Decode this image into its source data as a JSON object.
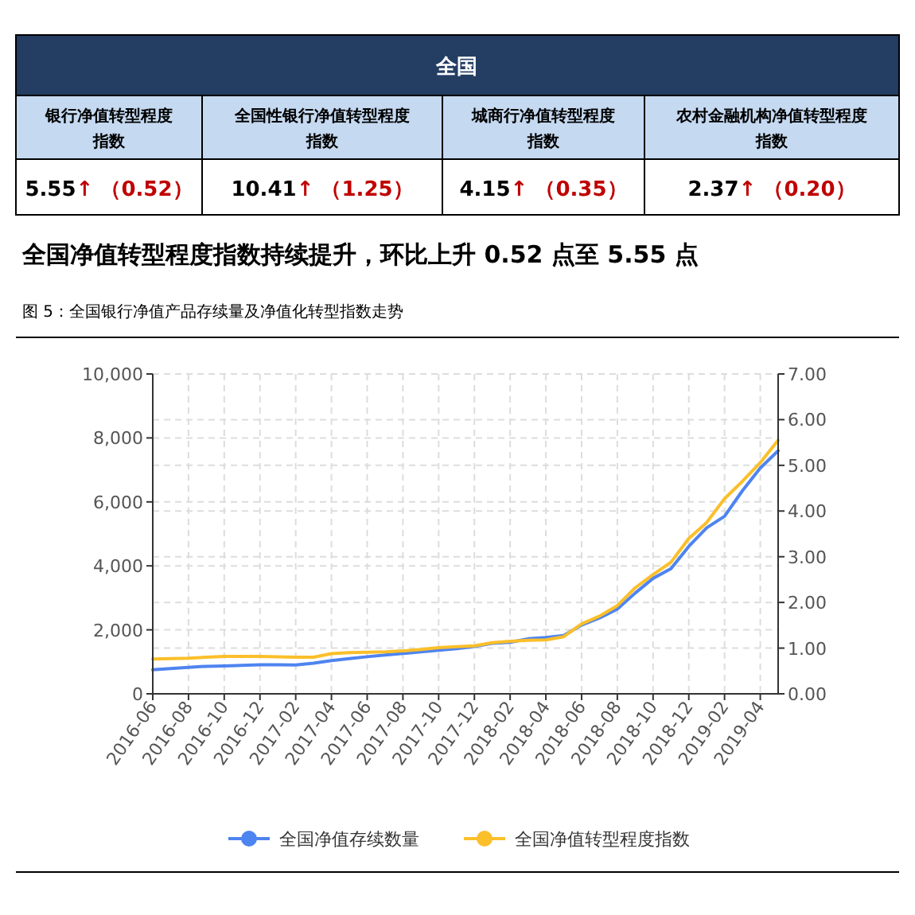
{
  "chart_data": [
    {
      "type": "other",
      "title": "全国",
      "annotations": [
        "银行净值转型程度指数",
        "全国性银行净值转型程度指数",
        "城商行净值转型程度指数",
        "农村金融机构净值转型程度指数",
        "5.55↑ （0.52）",
        "10.41↑ （1.25）",
        "4.15↑ （0.35）",
        "2.37↑ （0.20）",
        "全国净值转型程度指数持续提升，环比上升 0.52 点至 5.55 点"
      ]
    },
    {
      "type": "line",
      "title": "图 5：全国银行净值产品存续量及净值化转型指数走势",
      "categories": [
        "2016-06",
        null,
        "2016-08",
        null,
        "2016-10",
        null,
        "2016-12",
        null,
        "2017-02",
        null,
        "2017-04",
        null,
        "2017-06",
        null,
        "2017-08",
        null,
        "2017-10",
        null,
        "2017-12",
        null,
        "2018-02",
        null,
        "2018-04",
        null,
        "2018-06",
        null,
        "2018-08",
        null,
        "2018-10",
        null,
        "2018-12",
        null,
        "2019-02",
        null,
        "2019-04",
        null
      ],
      "series": [
        {
          "name": "全国净值存续数量",
          "color": "#4e84f0",
          "values": [
            750,
            790,
            830,
            860,
            870,
            890,
            910,
            910,
            900,
            960,
            1040,
            1100,
            1160,
            1210,
            1260,
            1310,
            1360,
            1410,
            1480,
            1580,
            1610,
            1720,
            1760,
            1820,
            2150,
            2370,
            2650,
            3150,
            3610,
            3910,
            4610,
            5190,
            5550,
            6350,
            7060,
            7600
          ]
        },
        {
          "name": "全国净值转型程度指数",
          "color": "#fbbf2a",
          "axis": "y2",
          "values": [
            0.76,
            0.77,
            0.78,
            0.8,
            0.82,
            0.82,
            0.82,
            0.81,
            0.8,
            0.8,
            0.88,
            0.9,
            0.91,
            0.92,
            0.94,
            0.97,
            1.01,
            1.03,
            1.05,
            1.12,
            1.15,
            1.17,
            1.18,
            1.25,
            1.53,
            1.7,
            1.93,
            2.32,
            2.61,
            2.88,
            3.4,
            3.75,
            4.27,
            4.65,
            5.06,
            5.55
          ]
        }
      ],
      "ylim": [
        0,
        10000
      ],
      "yticks": [
        0,
        {
          "value": 2000,
          "label": "2,000"
        },
        {
          "value": 4000,
          "label": "4,000"
        },
        {
          "value": 6000,
          "label": "6,000"
        },
        {
          "value": 8000,
          "label": "8,000"
        },
        {
          "value": 10000,
          "label": "10,000"
        }
      ],
      "y2lim": [
        0,
        7
      ],
      "y2ticks": [
        {
          "value": 0,
          "label": "0.00"
        },
        {
          "value": 1,
          "label": "1.00"
        },
        {
          "value": 2,
          "label": "2.00"
        },
        {
          "value": 3,
          "label": "3.00"
        },
        {
          "value": 4,
          "label": "4.00"
        },
        {
          "value": 5,
          "label": "5.00"
        },
        {
          "value": 6,
          "label": "6.00"
        },
        {
          "value": 7,
          "label": "7.00"
        }
      ],
      "grid": true,
      "legend": "bottom",
      "line_style": "solid"
    }
  ]
}
